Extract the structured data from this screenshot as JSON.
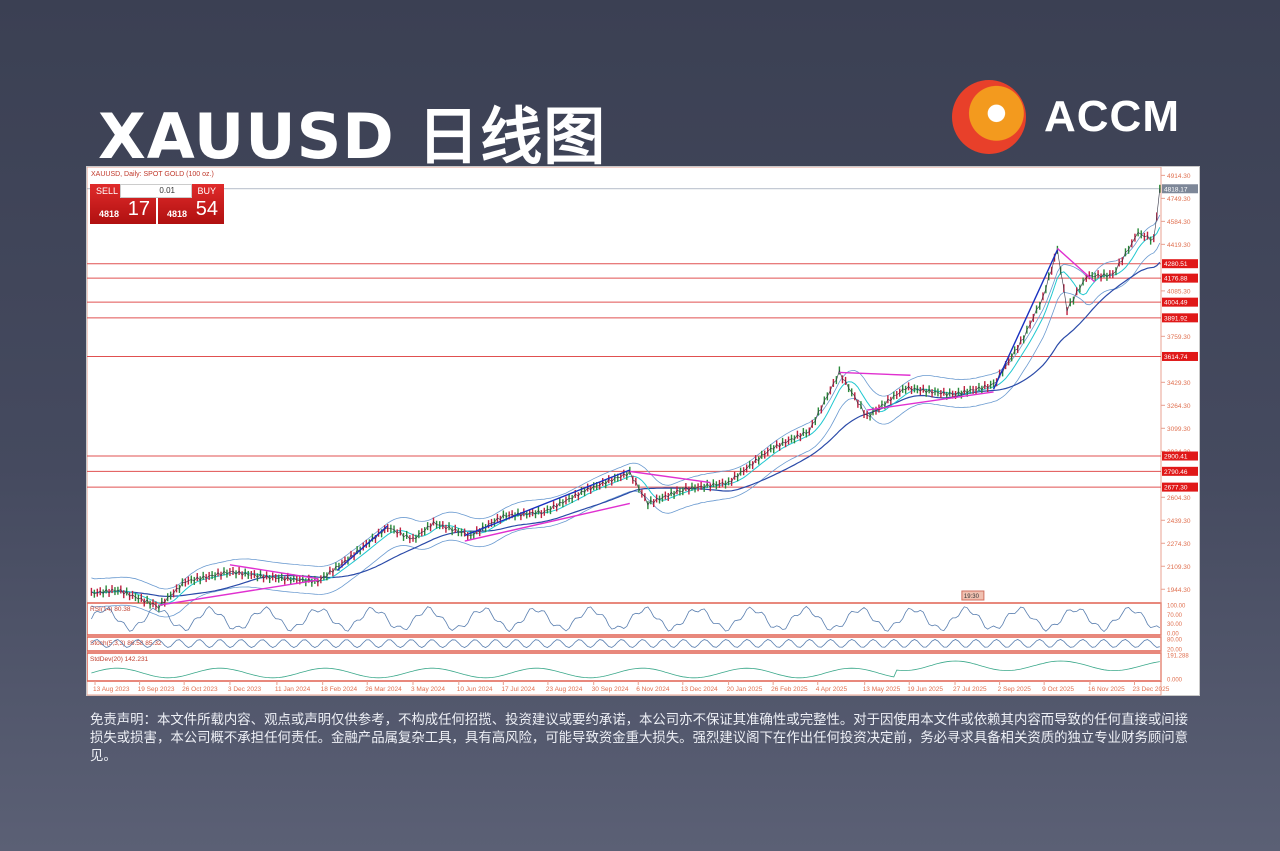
{
  "header": {
    "title": "XAUUSD 日线图",
    "brand": "ACCM"
  },
  "terminal": {
    "symbol_line": "XAUUSD, Daily:  SPOT GOLD (100 oz.)",
    "sell_label": "SELL",
    "buy_label": "BUY",
    "lot": "0.01",
    "sell_prefix": "4818",
    "sell_big": "17",
    "buy_prefix": "4818",
    "buy_big": "54",
    "time_marker": "19:30"
  },
  "chart_data": {
    "type": "line",
    "title": "XAUUSD, Daily:  SPOT GOLD (100 oz.)",
    "ylim": [
      1860,
      4960
    ],
    "y_ticks": [
      "4914.30",
      "4749.30",
      "4584.30",
      "4419.30",
      "4085.30",
      "3759.30",
      "3429.30",
      "3264.30",
      "3099.30",
      "2934.30",
      "2604.30",
      "2439.30",
      "2274.30",
      "2109.30",
      "1944.30"
    ],
    "current_price": "4818.17",
    "levels": [
      "4280.51",
      "4176.88",
      "4004.49",
      "3891.92",
      "3614.74",
      "2900.41",
      "2790.46",
      "2677.30"
    ],
    "x_ticks": [
      "13 Aug 2023",
      "19 Sep 2023",
      "26 Oct 2023",
      "3 Dec 2023",
      "11 Jan 2024",
      "18 Feb 2024",
      "26 Mar 2024",
      "3 May 2024",
      "10 Jun 2024",
      "17 Jul 2024",
      "23 Aug 2024",
      "30 Sep 2024",
      "6 Nov 2024",
      "13 Dec 2024",
      "20 Jan 2025",
      "26 Feb 2025",
      "4 Apr 2025",
      "13 May 2025",
      "19 Jun 2025",
      "27 Jul 2025",
      "2 Sep 2025",
      "9 Oct 2025",
      "16 Nov 2025",
      "23 Dec 2025"
    ],
    "series": [
      {
        "x": [
          "2023-08-10",
          "2023-09-01",
          "2023-10-05",
          "2023-10-27",
          "2023-12-03",
          "2024-01-05",
          "2024-02-14",
          "2024-03-10",
          "2024-04-12",
          "2024-05-03",
          "2024-05-20",
          "2024-06-20",
          "2024-07-17",
          "2024-08-20",
          "2024-09-25",
          "2024-10-30",
          "2024-11-14",
          "2024-12-13",
          "2025-01-20",
          "2025-02-24",
          "2025-03-28",
          "2025-04-22",
          "2025-05-15",
          "2025-06-16",
          "2025-07-25",
          "2025-08-28",
          "2025-09-22",
          "2025-10-08",
          "2025-10-20",
          "2025-10-28",
          "2025-11-13",
          "2025-12-05",
          "2025-12-26",
          "2026-01-08",
          "2026-01-13"
        ],
        "y": [
          1915,
          1940,
          1820,
          2000,
          2070,
          2030,
          2000,
          2160,
          2390,
          2300,
          2420,
          2330,
          2470,
          2500,
          2660,
          2780,
          2560,
          2660,
          2710,
          2950,
          3080,
          3500,
          3180,
          3390,
          3340,
          3410,
          3750,
          4040,
          4380,
          3950,
          4190,
          4200,
          4500,
          4450,
          4818
        ]
      }
    ],
    "indicators": [
      {
        "name": "RSI(14)",
        "value": "80.38",
        "ticks": [
          "100.00",
          "70.00",
          "30.00",
          "0.00"
        ]
      },
      {
        "name": "Stoch(5,3,3)",
        "value": "86.58 85.32",
        "ticks": [
          "80.00",
          "20.00"
        ]
      },
      {
        "name": "StdDev(20)",
        "value": "142.231",
        "ticks": [
          "191.288",
          "0.000"
        ]
      }
    ]
  },
  "disclaimer": "免责声明：本文件所载内容、观点或声明仅供参考，不构成任何招揽、投资建议或要约承诺，本公司亦不保证其准确性或完整性。对于因使用本文件或依赖其内容而导致的任何直接或间接损失或损害，本公司概不承担任何责任。金融产品属复杂工具，具有高风险，可能导致资金重大损失。强烈建议阁下在作出任何投资决定前，务必寻求具备相关资质的独立专业财务顾问意见。"
}
